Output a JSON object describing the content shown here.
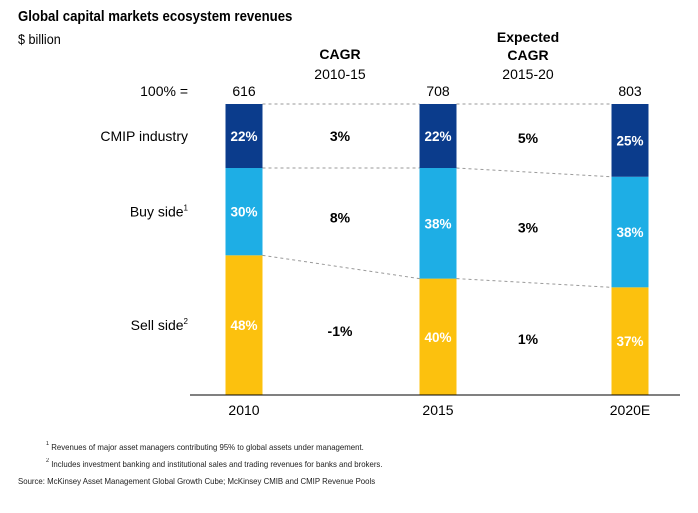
{
  "title": "Global capital markets ecosystem revenues",
  "subtitle": "$ billion",
  "total_label": "100% =",
  "cagr_headers": [
    {
      "lines": [
        "CAGR",
        "2010-15"
      ],
      "bold": [
        true,
        false
      ]
    },
    {
      "lines": [
        "Expected",
        "CAGR",
        "2015-20"
      ],
      "bold": [
        true,
        true,
        false
      ]
    }
  ],
  "footnotes": [
    {
      "mark": "1",
      "text": "Revenues of major asset managers contributing 95% to global assets under management."
    },
    {
      "mark": "2",
      "text": "Includes investment banking and institutional sales and trading revenues for banks and brokers."
    }
  ],
  "source": "Source: McKinsey Asset Management Global Growth Cube; McKinsey CMIB and CMIP Revenue Pools",
  "colors": {
    "cmip": "#0b3c8c",
    "buy": "#1eaee5",
    "sell": "#fcc10e",
    "connector": "#9a9a9a"
  },
  "chart_data": {
    "type": "bar",
    "stacked": true,
    "normalized": true,
    "categories": [
      "2010",
      "2015",
      "2020E"
    ],
    "totals": [
      "616",
      "708",
      "803"
    ],
    "series": [
      {
        "name": "Sell side",
        "mark": "2",
        "values": [
          48,
          40,
          37
        ],
        "labels": [
          "48%",
          "40%",
          "37%"
        ]
      },
      {
        "name": "Buy side",
        "mark": "1",
        "values": [
          30,
          38,
          38
        ],
        "labels": [
          "30%",
          "38%",
          "38%"
        ]
      },
      {
        "name": "CMIP industry",
        "mark": "",
        "values": [
          22,
          22,
          25
        ],
        "labels": [
          "22%",
          "22%",
          "25%"
        ]
      }
    ],
    "cagr": [
      {
        "period": "2010-15",
        "values": {
          "CMIP industry": "3%",
          "Buy side": "8%",
          "Sell side": "-1%"
        }
      },
      {
        "period": "2015-20",
        "values": {
          "CMIP industry": "5%",
          "Buy side": "3%",
          "Sell side": "1%"
        }
      }
    ],
    "ylim": [
      0,
      100
    ]
  }
}
